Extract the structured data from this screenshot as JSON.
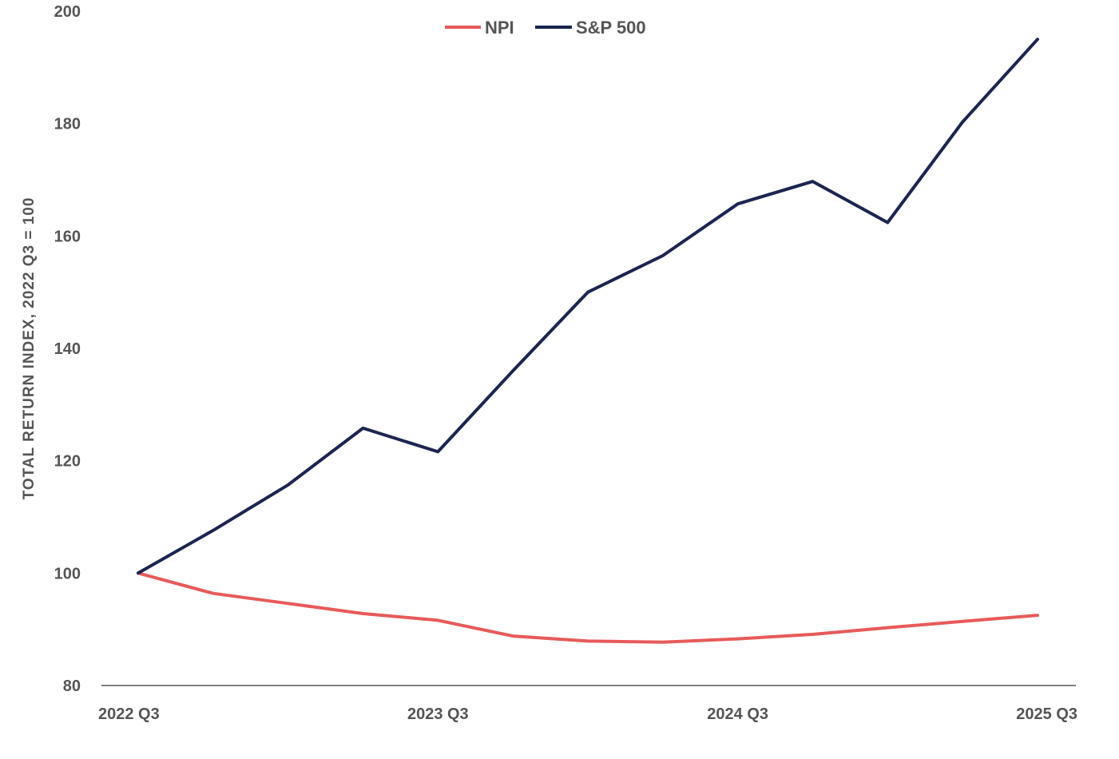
{
  "chart_data": {
    "type": "line",
    "title": "",
    "xlabel": "",
    "ylabel": "TOTAL RETURN INDEX, 2022 Q3 = 100",
    "ylim": [
      80,
      200
    ],
    "yticks": [
      80,
      100,
      120,
      140,
      160,
      180,
      200
    ],
    "x": [
      "2022 Q3",
      "2022 Q4",
      "2023 Q1",
      "2023 Q2",
      "2023 Q3",
      "2023 Q4",
      "2024 Q1",
      "2024 Q2",
      "2024 Q3",
      "2024 Q4",
      "2025 Q1",
      "2025 Q2",
      "2025 Q3"
    ],
    "xtick_labels": [
      "2022 Q3",
      "2023 Q3",
      "2024 Q3",
      "2025 Q3"
    ],
    "grid": false,
    "legend": "top-center",
    "series": [
      {
        "name": "NPI",
        "color": "#e85a5a",
        "values": [
          100,
          96.4,
          94.6,
          92.8,
          91.6,
          88.8,
          87.9,
          87.7,
          88.3,
          89.1,
          90.3,
          91.4,
          92.5
        ]
      },
      {
        "name": "S&P 500",
        "color": "#1b2550",
        "values": [
          100,
          107.6,
          115.7,
          125.8,
          121.6,
          136.0,
          150.0,
          156.5,
          165.7,
          169.7,
          162.4,
          180.3,
          195.0
        ]
      }
    ]
  }
}
